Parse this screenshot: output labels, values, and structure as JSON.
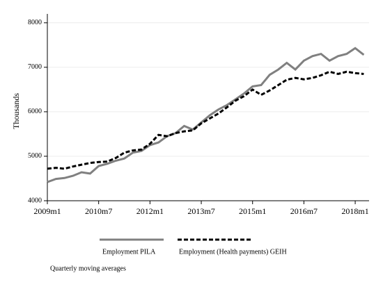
{
  "chart_data": {
    "type": "line",
    "categories": [
      "2009m1",
      null,
      null,
      null,
      null,
      null,
      "2010m7",
      null,
      null,
      null,
      null,
      null,
      "2012m1",
      null,
      null,
      null,
      null,
      null,
      "2013m7",
      null,
      null,
      null,
      null,
      null,
      "2015m1",
      null,
      null,
      null,
      null,
      null,
      "2016m7",
      null,
      null,
      null,
      null,
      null,
      "2018m1",
      null
    ],
    "series": [
      {
        "name": "Employment PILA",
        "color": "#808080",
        "dash": false,
        "values": [
          4420,
          4490,
          4510,
          4560,
          4640,
          4610,
          4780,
          4830,
          4900,
          4950,
          5080,
          5120,
          5250,
          5310,
          5450,
          5520,
          5680,
          5600,
          5760,
          5920,
          6050,
          6150,
          6280,
          6410,
          6570,
          6600,
          6830,
          6950,
          7100,
          6950,
          7150,
          7250,
          7300,
          7150,
          7250,
          7300,
          7430,
          7280
        ]
      },
      {
        "name": "Employment (Health payments) GEIH",
        "color": "#000000",
        "dash": true,
        "values": [
          4720,
          4740,
          4720,
          4770,
          4810,
          4850,
          4870,
          4880,
          4960,
          5080,
          5130,
          5150,
          5280,
          5480,
          5450,
          5520,
          5560,
          5580,
          5740,
          5850,
          5960,
          6100,
          6250,
          6350,
          6500,
          6380,
          6480,
          6600,
          6720,
          6760,
          6730,
          6760,
          6820,
          6900,
          6850,
          6900,
          6870,
          6850
        ]
      }
    ],
    "y_label": "Thousands",
    "note": "Quarterly moving averages",
    "ylim": [
      4000,
      8200
    ],
    "yticks": [
      4000,
      5000,
      6000,
      7000,
      8000
    ],
    "grid": true
  }
}
